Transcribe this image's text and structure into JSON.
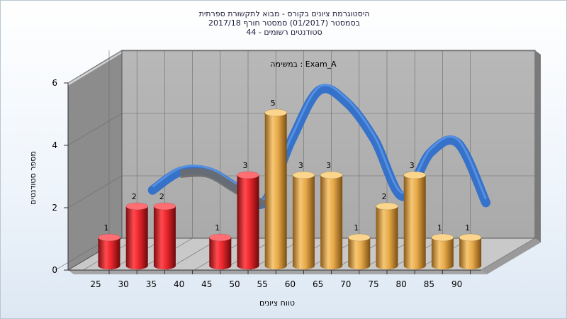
{
  "chart_data": {
    "type": "bar",
    "title_lines": [
      "היסטוגרמת ציונים בקורס - מבוא לתקשורת ספרתית",
      "בסמסטר  (01/2017)  סמסטר חורף 2017/18",
      "סטודנטים רשומים - 44"
    ],
    "annotation": "במשימה : Exam_A",
    "xlabel": "טווח ציונים",
    "ylabel": "מספר סטודנטים",
    "x_ticks": [
      "25",
      "30",
      "35",
      "40",
      "45",
      "50",
      "55",
      "60",
      "65",
      "70",
      "75",
      "80",
      "85",
      "90"
    ],
    "y_ticks": [
      0,
      2,
      4,
      6
    ],
    "ylim": [
      0,
      6
    ],
    "bars": [
      {
        "bin": "25",
        "value": 1,
        "status": "fail"
      },
      {
        "bin": "30",
        "value": 2,
        "status": "fail"
      },
      {
        "bin": "35",
        "value": 2,
        "status": "fail"
      },
      {
        "bin": "45",
        "value": 1,
        "status": "fail"
      },
      {
        "bin": "50",
        "value": 3,
        "status": "fail"
      },
      {
        "bin": "55",
        "value": 5,
        "status": "pass"
      },
      {
        "bin": "60",
        "value": 3,
        "status": "pass"
      },
      {
        "bin": "65",
        "value": 3,
        "status": "pass"
      },
      {
        "bin": "70",
        "value": 1,
        "status": "pass"
      },
      {
        "bin": "75",
        "value": 2,
        "status": "pass"
      },
      {
        "bin": "80",
        "value": 3,
        "status": "pass"
      },
      {
        "bin": "85",
        "value": 1,
        "status": "pass"
      },
      {
        "bin": "90",
        "value": 1,
        "status": "pass"
      }
    ],
    "curve": {
      "x": [
        "30",
        "35",
        "40",
        "45",
        "50",
        "55",
        "60",
        "65",
        "70",
        "75",
        "80",
        "85",
        "90"
      ],
      "values": [
        2.0,
        2.6,
        2.6,
        2.1,
        1.6,
        3.6,
        5.2,
        4.8,
        3.6,
        1.8,
        3.2,
        3.5,
        1.6
      ]
    },
    "colors": {
      "fail": "#e8252b",
      "pass": "#e6a848",
      "curve": "#2f6fca",
      "curve_shadow": "#6b6b6b",
      "wall": "#b5b5b5",
      "side_wall": "#8c8c8c",
      "grid": "#6a6a6a"
    },
    "grid": true,
    "legend": "none"
  }
}
